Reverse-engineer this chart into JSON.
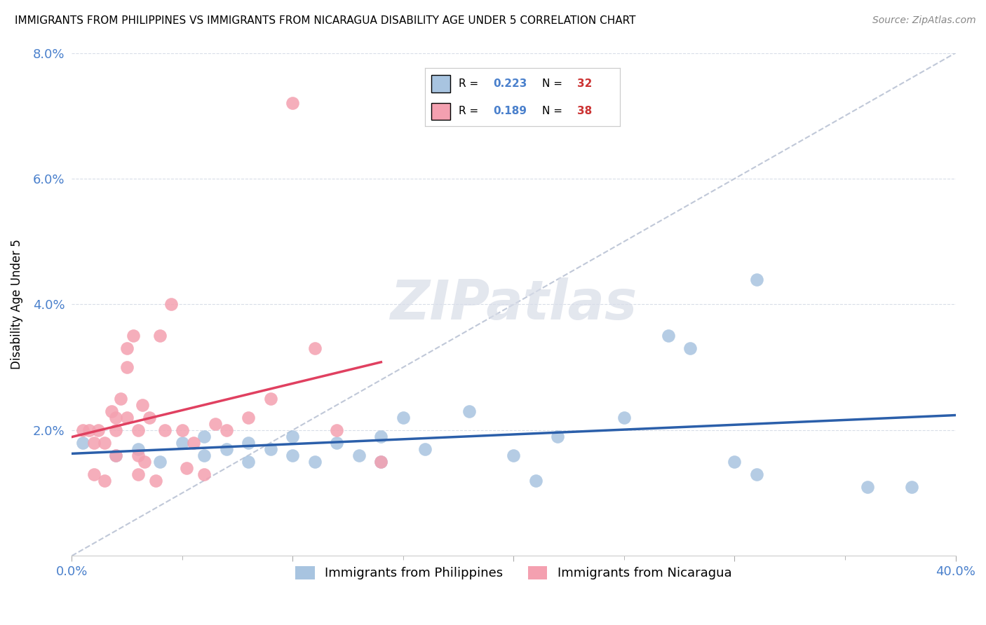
{
  "title": "IMMIGRANTS FROM PHILIPPINES VS IMMIGRANTS FROM NICARAGUA DISABILITY AGE UNDER 5 CORRELATION CHART",
  "source": "Source: ZipAtlas.com",
  "ylabel": "Disability Age Under 5",
  "xlim": [
    0.0,
    0.4
  ],
  "ylim": [
    0.0,
    0.08
  ],
  "xtick_positions": [
    0.0,
    0.1,
    0.2,
    0.3,
    0.4
  ],
  "xtick_labels": [
    "0.0%",
    "",
    "",
    "",
    "40.0%"
  ],
  "ytick_positions": [
    0.0,
    0.02,
    0.04,
    0.06,
    0.08
  ],
  "ytick_labels": [
    "",
    "2.0%",
    "4.0%",
    "6.0%",
    "8.0%"
  ],
  "philippines_color": "#a8c4e0",
  "nicaragua_color": "#f4a0b0",
  "philippines_line_color": "#2b5faa",
  "nicaragua_line_color": "#e04060",
  "dashed_line_color": "#c0c8d8",
  "tick_label_color": "#4a80cc",
  "legend_R_philippines": "0.223",
  "legend_N_philippines": "32",
  "legend_R_nicaragua": "0.189",
  "legend_N_nicaragua": "38",
  "watermark": "ZIPatlas",
  "philippines_x": [
    0.005,
    0.02,
    0.03,
    0.04,
    0.05,
    0.06,
    0.06,
    0.07,
    0.08,
    0.08,
    0.09,
    0.1,
    0.1,
    0.11,
    0.12,
    0.13,
    0.14,
    0.14,
    0.15,
    0.16,
    0.18,
    0.2,
    0.21,
    0.22,
    0.25,
    0.27,
    0.28,
    0.3,
    0.31,
    0.31,
    0.36,
    0.38
  ],
  "philippines_y": [
    0.018,
    0.016,
    0.017,
    0.015,
    0.018,
    0.016,
    0.019,
    0.017,
    0.015,
    0.018,
    0.017,
    0.019,
    0.016,
    0.015,
    0.018,
    0.016,
    0.015,
    0.019,
    0.022,
    0.017,
    0.023,
    0.016,
    0.012,
    0.019,
    0.022,
    0.035,
    0.033,
    0.015,
    0.013,
    0.044,
    0.011,
    0.011
  ],
  "nicaragua_x": [
    0.005,
    0.008,
    0.01,
    0.01,
    0.012,
    0.015,
    0.015,
    0.018,
    0.02,
    0.02,
    0.02,
    0.022,
    0.025,
    0.025,
    0.025,
    0.028,
    0.03,
    0.03,
    0.03,
    0.032,
    0.033,
    0.035,
    0.038,
    0.04,
    0.042,
    0.045,
    0.05,
    0.052,
    0.055,
    0.06,
    0.065,
    0.07,
    0.08,
    0.09,
    0.1,
    0.11,
    0.12,
    0.14
  ],
  "nicaragua_y": [
    0.02,
    0.02,
    0.018,
    0.013,
    0.02,
    0.018,
    0.012,
    0.023,
    0.022,
    0.02,
    0.016,
    0.025,
    0.033,
    0.03,
    0.022,
    0.035,
    0.02,
    0.016,
    0.013,
    0.024,
    0.015,
    0.022,
    0.012,
    0.035,
    0.02,
    0.04,
    0.02,
    0.014,
    0.018,
    0.013,
    0.021,
    0.02,
    0.022,
    0.025,
    0.072,
    0.033,
    0.02,
    0.015
  ]
}
